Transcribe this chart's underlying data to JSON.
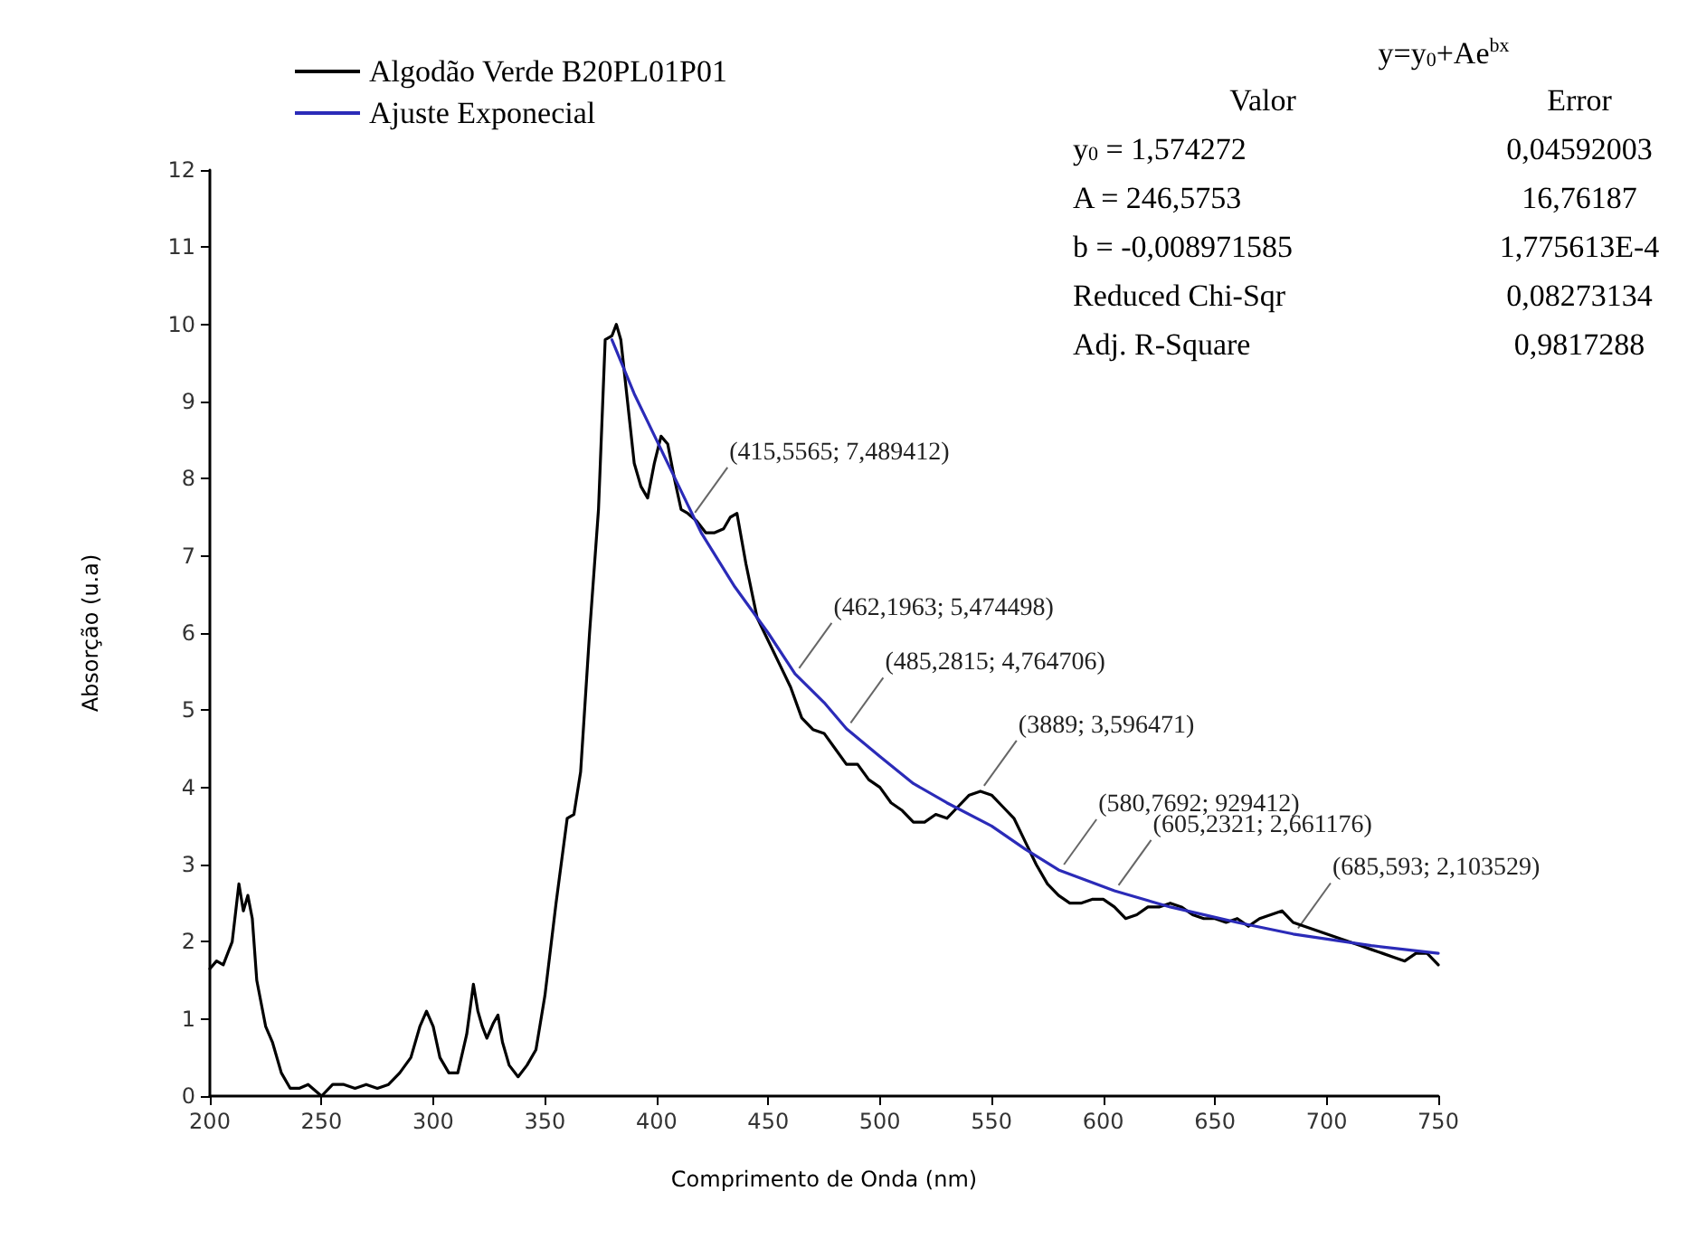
{
  "chart_data": {
    "type": "line",
    "xlabel": "Comprimento de Onda (nm)",
    "ylabel": "Absorção (u.a)",
    "xlim": [
      200,
      750
    ],
    "xticks": [
      200,
      250,
      300,
      350,
      400,
      450,
      500,
      550,
      600,
      650,
      700,
      750
    ],
    "ylim": [
      0,
      12
    ],
    "yticks": [
      0,
      1,
      2,
      3,
      4,
      5,
      6,
      7,
      8,
      9,
      10,
      11,
      12
    ],
    "grid": false,
    "legend": "top left",
    "marker": "none",
    "line_style": "solid",
    "series": [
      {
        "name": "Algodão Verde B20PL01P01",
        "color": "#000000",
        "x": [
          200,
          203,
          206,
          210,
          213,
          215,
          217,
          219,
          221,
          225,
          228,
          232,
          236,
          240,
          244,
          248,
          250,
          255,
          260,
          265,
          270,
          275,
          280,
          285,
          290,
          294,
          297,
          300,
          303,
          307,
          311,
          315,
          318,
          320,
          322,
          324,
          327,
          329,
          331,
          334,
          338,
          342,
          346,
          350,
          355,
          360,
          363,
          366,
          370,
          374,
          377,
          380,
          382,
          384,
          387,
          390,
          393,
          396,
          399,
          402,
          405,
          408,
          411,
          414,
          418,
          422,
          426,
          430,
          433,
          436,
          440,
          445,
          450,
          455,
          460,
          465,
          470,
          475,
          480,
          485,
          490,
          495,
          500,
          505,
          510,
          515,
          520,
          525,
          530,
          535,
          540,
          545,
          550,
          555,
          560,
          565,
          570,
          575,
          580,
          585,
          590,
          595,
          600,
          605,
          610,
          615,
          620,
          625,
          630,
          635,
          640,
          645,
          650,
          655,
          660,
          665,
          670,
          675,
          680,
          685,
          690,
          695,
          700,
          705,
          710,
          715,
          720,
          725,
          730,
          735,
          740,
          745,
          750
        ],
        "values": [
          1.65,
          1.75,
          1.7,
          2.0,
          2.75,
          2.4,
          2.6,
          2.3,
          1.5,
          0.9,
          0.7,
          0.3,
          0.1,
          0.1,
          0.15,
          0.05,
          0.0,
          0.15,
          0.15,
          0.1,
          0.15,
          0.1,
          0.15,
          0.3,
          0.5,
          0.9,
          1.1,
          0.9,
          0.5,
          0.3,
          0.3,
          0.8,
          1.45,
          1.1,
          0.9,
          0.75,
          0.95,
          1.05,
          0.7,
          0.4,
          0.25,
          0.4,
          0.6,
          1.3,
          2.5,
          3.6,
          3.65,
          4.2,
          6.0,
          7.6,
          9.8,
          9.85,
          10.0,
          9.8,
          9.0,
          8.2,
          7.9,
          7.75,
          8.2,
          8.55,
          8.45,
          8.0,
          7.6,
          7.55,
          7.45,
          7.3,
          7.3,
          7.35,
          7.5,
          7.55,
          6.9,
          6.2,
          5.9,
          5.6,
          5.3,
          4.9,
          4.75,
          4.7,
          4.5,
          4.3,
          4.3,
          4.1,
          4.0,
          3.8,
          3.7,
          3.55,
          3.55,
          3.65,
          3.6,
          3.75,
          3.9,
          3.95,
          3.9,
          3.75,
          3.6,
          3.3,
          3.0,
          2.75,
          2.6,
          2.5,
          2.5,
          2.55,
          2.55,
          2.45,
          2.3,
          2.35,
          2.45,
          2.45,
          2.5,
          2.45,
          2.35,
          2.3,
          2.3,
          2.25,
          2.3,
          2.2,
          2.3,
          2.35,
          2.4,
          2.25,
          2.2,
          2.15,
          2.1,
          2.05,
          2.0,
          1.95,
          1.9,
          1.85,
          1.8,
          1.75,
          1.85,
          1.85,
          1.7
        ]
      },
      {
        "name": "Ajuste Exponecial",
        "color": "#2b2bb8",
        "x": [
          380,
          390,
          400,
          410,
          420,
          435,
          450,
          462,
          475,
          485,
          500,
          515,
          530,
          550,
          565,
          580,
          605,
          630,
          660,
          685,
          720,
          750
        ],
        "values": [
          9.8,
          9.1,
          8.5,
          7.9,
          7.3,
          6.6,
          6.0,
          5.47,
          5.1,
          4.76,
          4.4,
          4.05,
          3.8,
          3.5,
          3.2,
          2.93,
          2.66,
          2.45,
          2.25,
          2.1,
          1.95,
          1.85
        ]
      }
    ],
    "annotations": [
      "y=y$_{0}$+Ae$^{bx}$",
      "Valor",
      "Error",
      "y$_{0}$ = 1,574272",
      "0,04592003",
      "A = 246,5753",
      "16,76187",
      "b = -0,008971585",
      "1,775613E-4",
      "Reduced Chi-Sqr",
      "0,08273134",
      "Adj. R-Square",
      "0,9817288",
      {
        "text": "(415,5565; 7,489412)",
        "x": 415.5565,
        "y": 7.489412
      },
      {
        "text": "(462,1963; 5,474498)",
        "x": 462.1963,
        "y": 5.474498
      },
      {
        "text": "(485,2815; 4,764706)",
        "x": 485.2815,
        "y": 4.764706
      },
      {
        "text": "(3889; 3,596471)",
        "x": 545,
        "y": 3.95
      },
      {
        "text": "(580,7692; 929412)",
        "x": 580.7692,
        "y": 2.93
      },
      {
        "text": "(605,2321; 2,661176)",
        "x": 605.2321,
        "y": 2.661176
      },
      {
        "text": "(685,593; 2,103529)",
        "x": 685.593,
        "y": 2.103529
      }
    ]
  }
}
